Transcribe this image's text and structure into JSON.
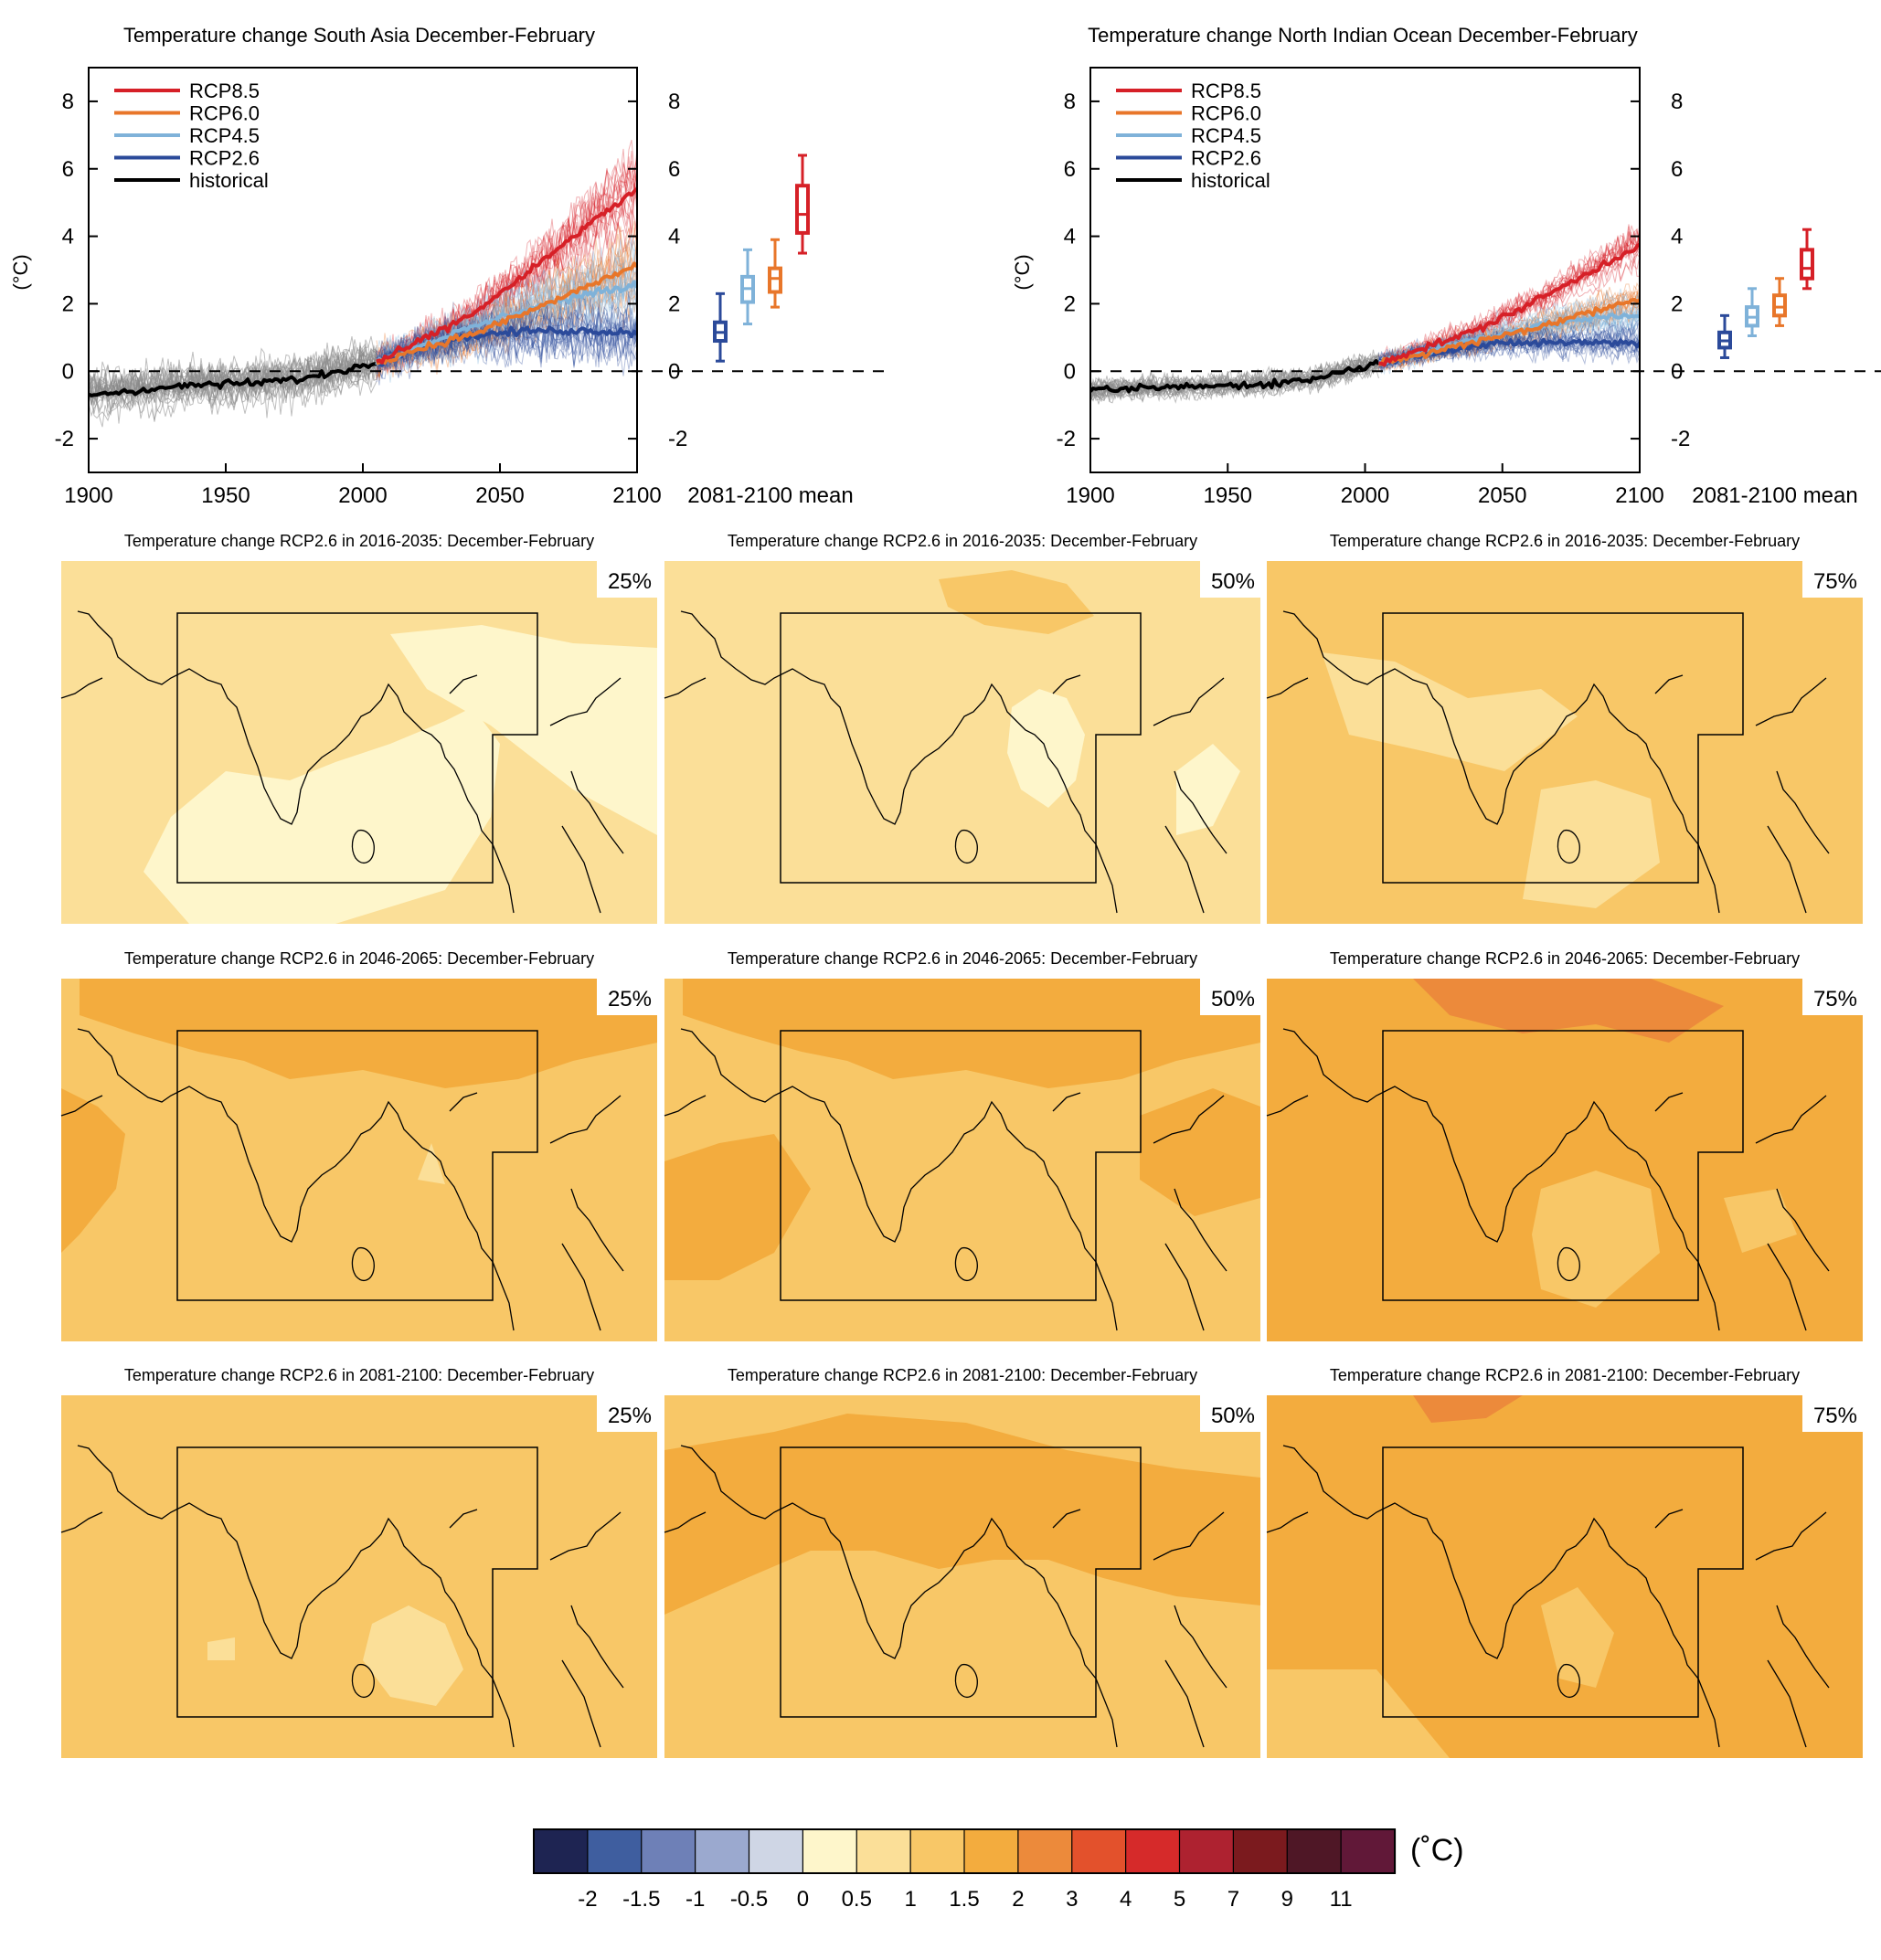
{
  "colors": {
    "rcp85": "#d62027",
    "rcp60": "#e8762a",
    "rcp45": "#7fb2d9",
    "rcp26": "#2b4a9a",
    "historical": "#000000",
    "ensemble_hist": "#8a8a8a",
    "boundary": "#000000"
  },
  "chart_data": [
    {
      "type": "line",
      "title": "Temperature change South Asia December-February",
      "ylabel": "(°C)",
      "xlim": [
        1900,
        2100
      ],
      "ylim": [
        -3,
        9
      ],
      "x_ticks": [
        "1900",
        "1950",
        "2000",
        "2050",
        "2100"
      ],
      "y_ticks": [
        "-2",
        "0",
        "2",
        "4",
        "6",
        "8"
      ],
      "legend": [
        "RCP8.5",
        "RCP6.0",
        "RCP4.5",
        "RCP2.6",
        "historical"
      ],
      "legend_position": "top-left",
      "zero_line": "dashed",
      "series": [
        {
          "name": "historical",
          "x": [
            1900,
            1920,
            1940,
            1960,
            1980,
            2005
          ],
          "values": [
            -0.7,
            -0.55,
            -0.4,
            -0.35,
            -0.2,
            0.25
          ]
        },
        {
          "name": "RCP2.6",
          "x": [
            2005,
            2020,
            2040,
            2060,
            2080,
            2100
          ],
          "values": [
            0.25,
            0.7,
            1.05,
            1.2,
            1.2,
            1.15
          ]
        },
        {
          "name": "RCP4.5",
          "x": [
            2005,
            2020,
            2040,
            2060,
            2080,
            2100
          ],
          "values": [
            0.25,
            0.75,
            1.3,
            1.85,
            2.25,
            2.55
          ]
        },
        {
          "name": "RCP6.0",
          "x": [
            2005,
            2020,
            2040,
            2060,
            2080,
            2100
          ],
          "values": [
            0.25,
            0.65,
            1.1,
            1.75,
            2.45,
            3.15
          ]
        },
        {
          "name": "RCP8.5",
          "x": [
            2005,
            2020,
            2040,
            2060,
            2080,
            2100
          ],
          "values": [
            0.25,
            0.85,
            1.7,
            2.9,
            4.2,
            5.4
          ]
        }
      ],
      "boxplot": {
        "label": "2081-2100 mean",
        "boxes": [
          {
            "name": "RCP2.6",
            "min": 0.3,
            "q1": 0.9,
            "median": 1.15,
            "q3": 1.45,
            "max": 2.3
          },
          {
            "name": "RCP4.5",
            "min": 1.4,
            "q1": 2.05,
            "median": 2.45,
            "q3": 2.8,
            "max": 3.6
          },
          {
            "name": "RCP6.0",
            "min": 1.9,
            "q1": 2.35,
            "median": 2.75,
            "q3": 3.05,
            "max": 3.9
          },
          {
            "name": "RCP8.5",
            "min": 3.5,
            "q1": 4.1,
            "median": 4.65,
            "q3": 5.5,
            "max": 6.4
          }
        ]
      }
    },
    {
      "type": "line",
      "title": "Temperature change North Indian Ocean December-February",
      "ylabel": "(°C)",
      "xlim": [
        1900,
        2100
      ],
      "ylim": [
        -3,
        9
      ],
      "x_ticks": [
        "1900",
        "1950",
        "2000",
        "2050",
        "2100"
      ],
      "y_ticks": [
        "-2",
        "0",
        "2",
        "4",
        "6",
        "8"
      ],
      "legend": [
        "RCP8.5",
        "RCP6.0",
        "RCP4.5",
        "RCP2.6",
        "historical"
      ],
      "legend_position": "top-left",
      "zero_line": "dashed",
      "series": [
        {
          "name": "historical",
          "x": [
            1900,
            1920,
            1940,
            1960,
            1980,
            2005
          ],
          "values": [
            -0.6,
            -0.5,
            -0.45,
            -0.4,
            -0.25,
            0.25
          ]
        },
        {
          "name": "RCP2.6",
          "x": [
            2005,
            2020,
            2040,
            2060,
            2080,
            2100
          ],
          "values": [
            0.25,
            0.5,
            0.75,
            0.85,
            0.85,
            0.85
          ]
        },
        {
          "name": "RCP4.5",
          "x": [
            2005,
            2020,
            2040,
            2060,
            2080,
            2100
          ],
          "values": [
            0.25,
            0.55,
            0.95,
            1.3,
            1.55,
            1.65
          ]
        },
        {
          "name": "RCP6.0",
          "x": [
            2005,
            2020,
            2040,
            2060,
            2080,
            2100
          ],
          "values": [
            0.25,
            0.5,
            0.85,
            1.25,
            1.7,
            2.15
          ]
        },
        {
          "name": "RCP8.5",
          "x": [
            2005,
            2020,
            2040,
            2060,
            2080,
            2100
          ],
          "values": [
            0.25,
            0.65,
            1.2,
            2.0,
            2.85,
            3.75
          ]
        }
      ],
      "boxplot": {
        "label": "2081-2100 mean",
        "boxes": [
          {
            "name": "RCP2.6",
            "min": 0.4,
            "q1": 0.7,
            "median": 0.9,
            "q3": 1.15,
            "max": 1.65
          },
          {
            "name": "RCP4.5",
            "min": 1.05,
            "q1": 1.35,
            "median": 1.6,
            "q3": 1.9,
            "max": 2.45
          },
          {
            "name": "RCP6.0",
            "min": 1.35,
            "q1": 1.65,
            "median": 1.9,
            "q3": 2.25,
            "max": 2.75
          },
          {
            "name": "RCP8.5",
            "min": 2.45,
            "q1": 2.75,
            "median": 3.05,
            "q3": 3.6,
            "max": 4.2
          }
        ]
      }
    },
    {
      "type": "heatmap",
      "titles": [
        "Temperature change RCP2.6 in 2016-2035: December-February",
        "Temperature change RCP2.6 in 2046-2065: December-February",
        "Temperature change RCP2.6 in 2081-2100: December-February"
      ],
      "percentiles": [
        "25%",
        "50%",
        "75%"
      ],
      "dominant_level": [
        [
          0.5,
          0.5,
          1.0
        ],
        [
          1.0,
          1.0,
          1.5
        ],
        [
          1.0,
          1.0,
          1.5
        ]
      ]
    }
  ],
  "colorbar": {
    "unit": "(˚C)",
    "labels": [
      "-2",
      "-1.5",
      "-1",
      "-0.5",
      "0",
      "0.5",
      "1",
      "1.5",
      "2",
      "3",
      "4",
      "5",
      "7",
      "9",
      "11"
    ],
    "colors": [
      "#1e2452",
      "#3f5e9f",
      "#6e80b7",
      "#9ba9cf",
      "#cfd6e5",
      "#fef6cb",
      "#fbdf98",
      "#f8c767",
      "#f3ac3e",
      "#ec8a3b",
      "#e3512c",
      "#d62a2a",
      "#ae2230",
      "#7b1a1e",
      "#4f1726",
      "#611838"
    ]
  }
}
